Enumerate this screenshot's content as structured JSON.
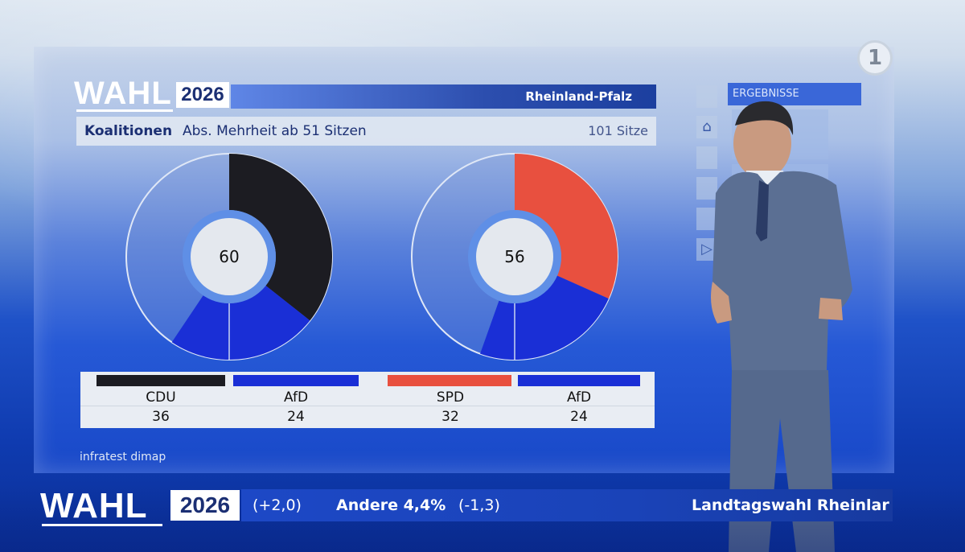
{
  "header": {
    "wahl": "WAHL",
    "year": "2026",
    "region": "Rheinland-Pfalz",
    "title": "Koalitionen",
    "subtitle": "Abs. Mehrheit ab 51 Sitzen",
    "total_seats": "101 Sitze"
  },
  "chart_data": [
    {
      "type": "pie",
      "center_label": "60",
      "total": 101,
      "slices": [
        {
          "name": "CDU",
          "value": 36,
          "color": "#1c1c22"
        },
        {
          "name": "AfD",
          "value": 24,
          "color": "#1a2fd6"
        }
      ]
    },
    {
      "type": "pie",
      "center_label": "56",
      "total": 101,
      "slices": [
        {
          "name": "SPD",
          "value": 32,
          "color": "#e8503f"
        },
        {
          "name": "AfD",
          "value": 24,
          "color": "#1a2fd6"
        }
      ]
    }
  ],
  "legend": [
    {
      "name": "CDU",
      "value": "36",
      "color": "#1c1c22"
    },
    {
      "name": "AfD",
      "value": "24",
      "color": "#1a2fd6"
    },
    {
      "name": "SPD",
      "value": "32",
      "color": "#e8503f"
    },
    {
      "name": "AfD",
      "value": "24",
      "color": "#1a2fd6"
    }
  ],
  "source": "infratest dimap",
  "side_panel": {
    "title": "ERGEBNISSE",
    "icons": [
      "home-icon",
      "play-icon"
    ]
  },
  "ticker": {
    "wahl": "WAHL",
    "year": "2026",
    "change1": "(+2,0)",
    "andere": "Andere 4,4%",
    "change2": "(-1,3)",
    "headline": "Landtagswahl Rheinlar"
  },
  "channel_logo": "1",
  "colors": {
    "accent": "#1b2f73",
    "afd": "#1a2fd6",
    "cdu": "#1c1c22",
    "spd": "#e8503f"
  }
}
